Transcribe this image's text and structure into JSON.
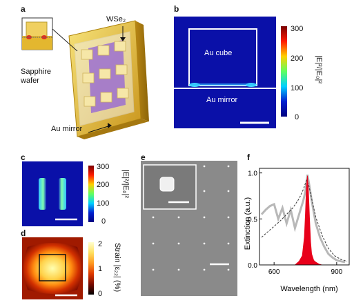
{
  "panels": {
    "a": {
      "label": "a",
      "wse2_label": "WSe₂",
      "sapphire_label_1": "Sapphire",
      "sapphire_label_2": "wafer",
      "mirror_label": "Au mirror"
    },
    "b": {
      "label": "b",
      "cube_label": "Au cube",
      "mirror_label": "Au mirror",
      "colorbar_ticks": [
        "300",
        "200",
        "100",
        "0"
      ],
      "colorbar_title": "|E|²/|E₀|²"
    },
    "c": {
      "label": "c",
      "colorbar_ticks": [
        "300",
        "200",
        "100",
        "0"
      ],
      "colorbar_title": "|E|²/|E₀|²"
    },
    "d": {
      "label": "d",
      "colorbar_ticks": [
        "2",
        "1",
        "0"
      ],
      "colorbar_title": "Strain |ε₂₂| (%)"
    },
    "e": {
      "label": "e"
    },
    "f": {
      "label": "f"
    }
  },
  "colors": {
    "field_low": "#0a10a8",
    "hot_high": "#ffffa0",
    "gold": "#e8c63a",
    "spectrum_red": "#e8001a"
  },
  "chart_data": {
    "type": "line",
    "xlabel": "Wavelength (nm)",
    "ylabel": "Extinction (a.u.)",
    "xlim": [
      530,
      960
    ],
    "ylim": [
      0,
      1.05
    ],
    "xticks": [
      "600",
      "900"
    ],
    "yticks": [
      "0.0",
      "0.5",
      "1.0"
    ],
    "series": [
      {
        "style": "solid-grey",
        "x": [
          540,
          560,
          580,
          600,
          620,
          640,
          660,
          680,
          700,
          720,
          740,
          750,
          760,
          770,
          780,
          800,
          820,
          840,
          860,
          880,
          900,
          920,
          940
        ],
        "y": [
          0.55,
          0.6,
          0.64,
          0.66,
          0.5,
          0.62,
          0.45,
          0.6,
          0.4,
          0.55,
          0.7,
          0.8,
          0.98,
          0.85,
          0.7,
          0.45,
          0.3,
          0.2,
          0.12,
          0.08,
          0.05,
          0.04,
          0.03
        ]
      },
      {
        "style": "dashed-dark",
        "x": [
          540,
          570,
          600,
          630,
          660,
          690,
          720,
          740,
          755,
          765,
          780,
          800,
          830,
          860,
          890,
          920,
          950
        ],
        "y": [
          0.3,
          0.36,
          0.42,
          0.48,
          0.55,
          0.62,
          0.72,
          0.82,
          0.92,
          0.88,
          0.72,
          0.52,
          0.32,
          0.18,
          0.1,
          0.06,
          0.04
        ]
      },
      {
        "style": "red-fill",
        "x": [
          700,
          720,
          735,
          745,
          750,
          755,
          760,
          765,
          770,
          775,
          780,
          790,
          800,
          815,
          830
        ],
        "y": [
          0.0,
          0.04,
          0.1,
          0.3,
          0.55,
          0.85,
          0.97,
          0.8,
          0.5,
          0.25,
          0.12,
          0.05,
          0.03,
          0.01,
          0.0
        ]
      }
    ]
  }
}
